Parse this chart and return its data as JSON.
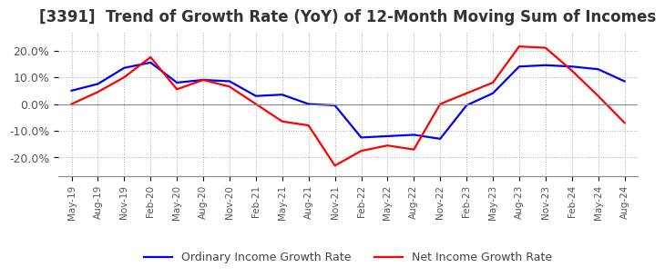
{
  "title": "[3391]  Trend of Growth Rate (YoY) of 12-Month Moving Sum of Incomes",
  "title_fontsize": 12,
  "ylim": [
    -0.27,
    0.27
  ],
  "yticks": [
    -0.2,
    -0.1,
    0.0,
    0.1,
    0.2
  ],
  "ytick_labels": [
    "-20.0%",
    "-10.0%",
    "0.0%",
    "10.0%",
    "20.0%"
  ],
  "background_color": "#ffffff",
  "grid_color": "#aaaaaa",
  "legend_labels": [
    "Ordinary Income Growth Rate",
    "Net Income Growth Rate"
  ],
  "legend_colors": [
    "blue",
    "red"
  ],
  "x_labels": [
    "May-19",
    "Aug-19",
    "Nov-19",
    "Feb-20",
    "May-20",
    "Aug-20",
    "Nov-20",
    "Feb-21",
    "May-21",
    "Aug-21",
    "Nov-21",
    "Feb-22",
    "May-22",
    "Aug-22",
    "Nov-22",
    "Feb-23",
    "May-23",
    "Aug-23",
    "Nov-23",
    "Feb-24",
    "May-24",
    "Aug-24"
  ],
  "ordinary_income_growth": [
    0.05,
    0.075,
    0.135,
    0.155,
    0.08,
    0.09,
    0.085,
    0.03,
    0.035,
    0.0,
    -0.005,
    -0.125,
    -0.12,
    -0.115,
    -0.13,
    -0.005,
    0.04,
    0.14,
    0.145,
    0.14,
    0.13,
    0.085
  ],
  "net_income_growth": [
    0.0,
    0.045,
    0.1,
    0.175,
    0.055,
    0.09,
    0.065,
    0.0,
    -0.065,
    -0.08,
    -0.23,
    -0.175,
    -0.155,
    -0.17,
    0.0,
    0.04,
    0.08,
    0.215,
    0.21,
    0.125,
    0.03,
    -0.07
  ]
}
